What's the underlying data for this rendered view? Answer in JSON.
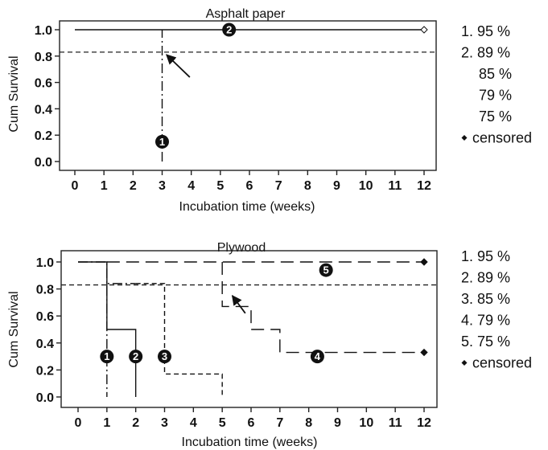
{
  "chart_data": [
    {
      "type": "line",
      "subtype": "kaplan-meier-survival",
      "title": "Asphalt paper",
      "xlabel": "Incubation time (weeks)",
      "ylabel": "Cum Survival",
      "xlim": [
        0,
        12
      ],
      "ylim": [
        0,
        1
      ],
      "x_ticks": [
        0,
        1,
        2,
        3,
        4,
        5,
        6,
        7,
        8,
        9,
        10,
        11,
        12
      ],
      "y_ticks": [
        "0.0",
        "0.2",
        "0.4",
        "0.6",
        "0.8",
        "1.0"
      ],
      "reference_line": {
        "y": 0.83,
        "style": "dashed"
      },
      "series": [
        {
          "marker": "1",
          "style": "dash-dot",
          "x": [
            3,
            3
          ],
          "y": [
            0.0,
            1.0
          ]
        },
        {
          "marker": "2",
          "style": "solid",
          "x": [
            0,
            12
          ],
          "y": [
            1.0,
            1.0
          ]
        }
      ],
      "markers": [
        {
          "label": "1",
          "x": 3.0,
          "y": 0.15
        },
        {
          "label": "2",
          "x": 5.3,
          "y": 1.0
        }
      ],
      "censored_points": [
        {
          "x": 12,
          "y": 1.0,
          "filled": false
        }
      ],
      "annotation_arrow": {
        "from": [
          3.95,
          0.64
        ],
        "to": [
          3.15,
          0.81
        ]
      },
      "legend": {
        "placement": "right",
        "items": [
          "1. 95 %",
          "2. 89 %",
          "85 %",
          "79 %",
          "75 %",
          "censored"
        ]
      }
    },
    {
      "type": "line",
      "subtype": "kaplan-meier-survival",
      "title": "Plywood",
      "xlabel": "Incubation time (weeks)",
      "ylabel": "Cum Survival",
      "xlim": [
        0,
        12
      ],
      "ylim": [
        0,
        1
      ],
      "x_ticks": [
        0,
        1,
        2,
        3,
        4,
        5,
        6,
        7,
        8,
        9,
        10,
        11,
        12
      ],
      "y_ticks": [
        "0.0",
        "0.2",
        "0.4",
        "0.6",
        "0.8",
        "1.0"
      ],
      "reference_line": {
        "y": 0.83,
        "style": "dashed"
      },
      "series": [
        {
          "marker": "1",
          "style": "solid",
          "x": [
            0,
            1,
            1,
            2,
            2
          ],
          "y": [
            1.0,
            1.0,
            0.5,
            0.5,
            0.0
          ]
        },
        {
          "marker": "2",
          "style": "dash-dot",
          "x": [
            0,
            1,
            1,
            1,
            2
          ],
          "y": [
            1.0,
            1.0,
            0.0,
            0.84,
            0.84
          ]
        },
        {
          "marker": "3",
          "style": "dashed",
          "x": [
            2,
            3,
            3,
            5,
            5
          ],
          "y": [
            0.84,
            0.84,
            0.17,
            0.17,
            0.0
          ]
        },
        {
          "marker": "4",
          "style": "long-dash",
          "x": [
            5,
            5,
            6,
            6,
            7,
            7,
            12
          ],
          "y": [
            1.0,
            0.67,
            0.67,
            0.5,
            0.5,
            0.33,
            0.33
          ]
        },
        {
          "marker": "5",
          "style": "long-dash",
          "x": [
            1,
            12
          ],
          "y": [
            1.0,
            1.0
          ]
        }
      ],
      "markers": [
        {
          "label": "1",
          "x": 1.0,
          "y": 0.3
        },
        {
          "label": "2",
          "x": 2.0,
          "y": 0.3
        },
        {
          "label": "3",
          "x": 3.0,
          "y": 0.3
        },
        {
          "label": "4",
          "x": 8.3,
          "y": 0.3
        },
        {
          "label": "5",
          "x": 8.6,
          "y": 0.94
        }
      ],
      "censored_points": [
        {
          "x": 12,
          "y": 1.0,
          "filled": true
        },
        {
          "x": 12,
          "y": 0.33,
          "filled": true
        }
      ],
      "annotation_arrow": {
        "from": [
          5.8,
          0.62
        ],
        "to": [
          5.35,
          0.75
        ]
      },
      "legend": {
        "placement": "right",
        "items": [
          "1. 95 %",
          "2. 89 %",
          "3. 85 %",
          "4. 79 %",
          "5. 75 %",
          "censored"
        ]
      }
    }
  ]
}
